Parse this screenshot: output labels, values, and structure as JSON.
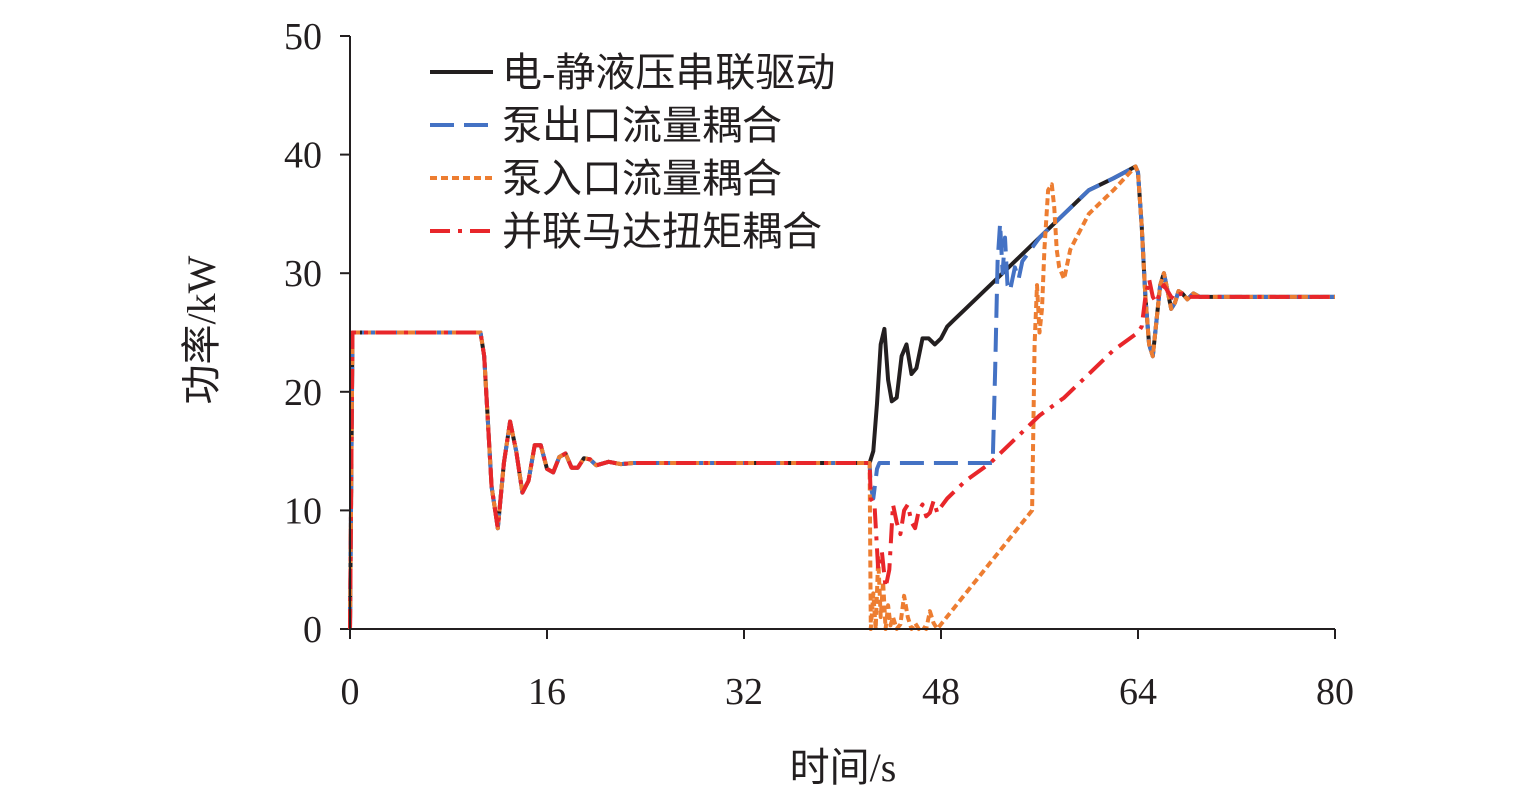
{
  "chart_data": {
    "type": "line",
    "title": "",
    "xlabel": "时间/s",
    "ylabel": "功率/kW",
    "xlim": [
      0,
      80
    ],
    "ylim": [
      0,
      50
    ],
    "xticks": [
      0,
      16,
      32,
      48,
      64,
      80
    ],
    "yticks": [
      0,
      10,
      20,
      30,
      40,
      50
    ],
    "grid": false,
    "legend_position": "top-left",
    "series": [
      {
        "name": "电-静液压串联驱动",
        "color": "#231f20",
        "dash": "solid",
        "x": [
          0,
          0.2,
          0.5,
          10.6,
          10.9,
          11.5,
          12.0,
          12.5,
          13.0,
          13.5,
          14.0,
          14.5,
          15.0,
          15.5,
          16.0,
          16.5,
          17.0,
          17.5,
          18.0,
          18.5,
          19.0,
          19.5,
          20.0,
          21.0,
          22.0,
          23.0,
          42.2,
          42.5,
          42.8,
          43.1,
          43.4,
          43.7,
          44.0,
          44.4,
          44.8,
          45.2,
          45.6,
          46.0,
          46.5,
          47.0,
          47.5,
          48.0,
          48.5,
          49.0,
          50.0,
          52.0,
          54.0,
          56.0,
          58.0,
          60.0,
          62.0,
          63.8,
          64.0,
          64.3,
          64.6,
          64.9,
          65.2,
          65.5,
          65.8,
          66.1,
          66.4,
          66.7,
          67.0,
          67.3,
          67.6,
          68.0,
          68.5,
          69.0,
          70.0,
          72.0,
          76.0,
          80.0
        ],
        "y": [
          0,
          25,
          25,
          25,
          23,
          12,
          8.5,
          14,
          17.5,
          15,
          11.5,
          12.5,
          15.5,
          15.5,
          13.5,
          13.2,
          14.5,
          14.8,
          13.6,
          13.6,
          14.4,
          14.3,
          13.8,
          14.1,
          13.9,
          14,
          14,
          15,
          19,
          24,
          25.3,
          21,
          19.2,
          19.5,
          23,
          24,
          21.5,
          22,
          24.5,
          24.5,
          24,
          24.5,
          25.5,
          26,
          27,
          29,
          31,
          33,
          35,
          37,
          38,
          39,
          38.5,
          34,
          28,
          24,
          23,
          26,
          29,
          30,
          28.5,
          27,
          27.5,
          28.5,
          28.3,
          27.8,
          28.3,
          28,
          28,
          28,
          28,
          28
        ]
      },
      {
        "name": "泵出口流量耦合",
        "color": "#4472c4",
        "dash": "long-dash",
        "x": [
          0,
          0.2,
          0.5,
          10.6,
          10.9,
          11.5,
          12.0,
          12.5,
          13.0,
          13.5,
          14.0,
          14.5,
          15.0,
          15.5,
          16.0,
          16.5,
          17.0,
          17.5,
          18.0,
          18.5,
          19.0,
          19.5,
          20.0,
          21.0,
          22.0,
          23.0,
          42.2,
          42.3,
          42.5,
          42.8,
          43.0,
          52.2,
          52.4,
          52.6,
          52.8,
          53.0,
          53.2,
          53.4,
          53.6,
          53.8,
          54.0,
          54.3,
          54.6,
          56.0,
          58.0,
          60.0,
          62.0,
          63.8,
          64.0,
          64.3,
          64.6,
          64.9,
          65.2,
          65.5,
          65.8,
          66.1,
          66.4,
          66.7,
          67.0,
          67.3,
          67.6,
          68.0,
          68.5,
          69.0,
          70.0,
          72.0,
          76.0,
          80.0
        ],
        "y": [
          0,
          25,
          25,
          25,
          23,
          12,
          8.5,
          14,
          17.5,
          15,
          11.5,
          12.5,
          15.5,
          15.5,
          13.5,
          13.2,
          14.5,
          14.8,
          13.6,
          13.6,
          14.4,
          14.3,
          13.8,
          14.1,
          13.9,
          14,
          14,
          12,
          11,
          13.5,
          14,
          14,
          22,
          31,
          34.2,
          30,
          33,
          29,
          28.5,
          29.5,
          30.5,
          29.5,
          31,
          33,
          35,
          37,
          38,
          39,
          38.5,
          34,
          28,
          24,
          23,
          26,
          29,
          30,
          28.5,
          27,
          27.5,
          28.5,
          28.3,
          27.8,
          28.3,
          28,
          28,
          28,
          28,
          28
        ]
      },
      {
        "name": "泵入口流量耦合",
        "color": "#ed7d31",
        "dash": "short-dash",
        "x": [
          0,
          0.2,
          0.5,
          10.6,
          10.9,
          11.5,
          12.0,
          12.5,
          13.0,
          13.5,
          14.0,
          14.5,
          15.0,
          15.5,
          16.0,
          16.5,
          17.0,
          17.5,
          18.0,
          18.5,
          19.0,
          19.5,
          20.0,
          21.0,
          22.0,
          23.0,
          42.2,
          42.3,
          42.5,
          42.7,
          42.9,
          43.1,
          43.3,
          43.5,
          43.7,
          43.9,
          44.1,
          44.4,
          44.7,
          45.0,
          45.3,
          45.6,
          45.9,
          46.2,
          46.5,
          46.8,
          47.1,
          47.4,
          47.7,
          48.0,
          55.4,
          55.6,
          55.8,
          56.0,
          56.2,
          56.4,
          56.7,
          57.0,
          57.2,
          57.4,
          57.6,
          57.8,
          58.0,
          58.5,
          59.0,
          59.5,
          60.0,
          60.5,
          61.0,
          62.0,
          63.8,
          64.0,
          64.3,
          64.6,
          64.9,
          65.2,
          65.5,
          65.8,
          66.1,
          66.4,
          66.7,
          67.0,
          67.3,
          67.6,
          68.0,
          68.5,
          69.0,
          70.0,
          72.0,
          76.0,
          80.0
        ],
        "y": [
          0,
          25,
          25,
          25,
          23,
          12,
          8.5,
          14,
          17.5,
          15,
          11.5,
          12.5,
          15.5,
          15.5,
          13.5,
          13.2,
          14.5,
          14.8,
          13.6,
          13.6,
          14.4,
          14.3,
          13.8,
          14.1,
          13.9,
          14,
          14,
          0,
          3,
          0,
          6,
          1,
          4,
          0,
          2,
          0.3,
          1,
          0,
          0.4,
          2.8,
          1,
          0,
          0.5,
          0,
          0.2,
          0,
          1.5,
          0.5,
          0,
          0.4,
          10,
          24,
          29,
          25,
          27,
          32,
          37,
          37.5,
          35.5,
          32,
          30.5,
          30,
          29.5,
          32,
          33,
          34,
          35,
          35.5,
          36,
          37,
          39,
          38.5,
          34,
          28,
          24,
          23,
          26,
          29,
          30,
          28.5,
          27,
          27.5,
          28.5,
          28.3,
          27.8,
          28.3,
          28,
          28,
          28,
          28,
          28
        ]
      },
      {
        "name": "并联马达扭矩耦合",
        "color": "#e8262a",
        "dash": "dash-dot",
        "x": [
          0,
          0.2,
          0.5,
          10.6,
          10.9,
          11.5,
          12.0,
          12.5,
          13.0,
          13.5,
          14.0,
          14.5,
          15.0,
          15.5,
          16.0,
          16.5,
          17.0,
          17.5,
          18.0,
          18.5,
          19.0,
          19.5,
          20.0,
          21.0,
          22.0,
          23.0,
          42.2,
          42.3,
          42.6,
          42.9,
          43.2,
          43.5,
          43.8,
          44.1,
          44.4,
          44.7,
          45.0,
          45.3,
          45.6,
          45.9,
          46.2,
          46.5,
          46.8,
          47.1,
          47.4,
          47.7,
          48.0,
          48.5,
          49.0,
          50.0,
          52.0,
          54.0,
          56.0,
          58.0,
          60.0,
          62.0,
          64.0,
          64.3,
          64.6,
          64.9,
          65.2,
          65.5,
          65.8,
          66.1,
          66.4,
          66.7,
          67.0,
          67.3,
          67.6,
          68.0,
          68.5,
          69.0,
          70.0,
          72.0,
          76.0,
          80.0
        ],
        "y": [
          0,
          25,
          25,
          25,
          23,
          12,
          8.5,
          14,
          17.5,
          15,
          11.5,
          12.5,
          15.5,
          15.5,
          13.5,
          13.2,
          14.5,
          14.8,
          13.6,
          13.6,
          14.4,
          14.3,
          13.8,
          14.1,
          13.9,
          14,
          14,
          11,
          10.5,
          5,
          6.5,
          3.5,
          5,
          10.5,
          9,
          8,
          10,
          10.5,
          9,
          8.5,
          10,
          10.5,
          9.5,
          9.8,
          10.8,
          9.8,
          10.3,
          11,
          11.5,
          12.5,
          14,
          16,
          18,
          19.5,
          21.5,
          23.5,
          25,
          25.5,
          28,
          29.5,
          28,
          27.5,
          28.5,
          29,
          28.5,
          28,
          27.8,
          28.2,
          28.3,
          28,
          28,
          28,
          28,
          28,
          28,
          28
        ]
      }
    ]
  }
}
